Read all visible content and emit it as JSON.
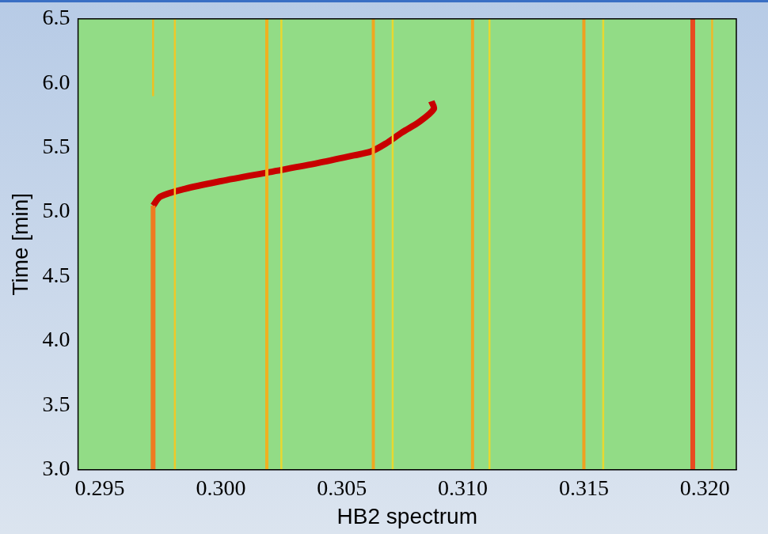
{
  "chart_data": {
    "type": "line",
    "x_label": "HB2 spectrum",
    "y_label": "Time [min]",
    "color": "#92dc86",
    "grid": false,
    "xlim": [
      0.2941,
      0.3213
    ],
    "ylim": [
      3.0,
      6.5
    ],
    "xticks": [
      {
        "value": 0.295,
        "label": "0.295"
      },
      {
        "value": 0.3,
        "label": "0.300"
      },
      {
        "value": 0.305,
        "label": "0.305"
      },
      {
        "value": 0.31,
        "label": "0.310"
      },
      {
        "value": 0.315,
        "label": "0.315"
      },
      {
        "value": 0.32,
        "label": "0.320"
      }
    ],
    "yticks": [
      {
        "value": 3,
        "label": "3.0"
      },
      {
        "value": 3.5,
        "label": "3.5"
      },
      {
        "value": 4,
        "label": "4.0"
      },
      {
        "value": 4.5,
        "label": "4.5"
      },
      {
        "value": 5,
        "label": "5.0"
      },
      {
        "value": 5.5,
        "label": "5.5"
      },
      {
        "value": 6,
        "label": "6.0"
      },
      {
        "value": 6.5,
        "label": "6.5"
      }
    ],
    "series": [
      {
        "color": "#f07a20",
        "line_style": "thick",
        "x": [
          0.2972,
          0.2972
        ],
        "values": [
          3.0,
          5.05
        ]
      },
      {
        "color": "#f0c020",
        "line_style": "thin",
        "x": [
          0.2972,
          0.2972
        ],
        "values": [
          5.9,
          6.5
        ]
      },
      {
        "color": "#f0c828",
        "line_style": "thin",
        "x": [
          0.2981,
          0.2981
        ],
        "values": [
          3.0,
          6.5
        ]
      },
      {
        "color": "#f0b020",
        "line_style": "medium",
        "x": [
          0.3019,
          0.3019
        ],
        "values": [
          3.0,
          6.5
        ]
      },
      {
        "color": "#e8d830",
        "line_style": "thin",
        "x": [
          0.3025,
          0.3025
        ],
        "values": [
          3.0,
          6.5
        ]
      },
      {
        "color": "#f0a820",
        "line_style": "medium",
        "x": [
          0.3063,
          0.3063
        ],
        "values": [
          3.0,
          6.5
        ]
      },
      {
        "color": "#e8d830",
        "line_style": "thin",
        "x": [
          0.3071,
          0.3071
        ],
        "values": [
          3.0,
          6.5
        ]
      },
      {
        "color": "#f0a820",
        "line_style": "medium",
        "x": [
          0.3104,
          0.3104
        ],
        "values": [
          3.0,
          6.5
        ]
      },
      {
        "color": "#e8d830",
        "line_style": "thin",
        "x": [
          0.3111,
          0.3111
        ],
        "values": [
          3.0,
          6.5
        ]
      },
      {
        "color": "#f0a020",
        "line_style": "medium",
        "x": [
          0.315,
          0.315
        ],
        "values": [
          3.0,
          6.5
        ]
      },
      {
        "color": "#e8d830",
        "line_style": "thin",
        "x": [
          0.3158,
          0.3158
        ],
        "values": [
          3.0,
          6.5
        ]
      },
      {
        "color": "#e84a20",
        "line_style": "thick",
        "x": [
          0.3195,
          0.3195
        ],
        "values": [
          3.0,
          6.5
        ]
      },
      {
        "color": "#f0b828",
        "line_style": "thin",
        "x": [
          0.3203,
          0.3203
        ],
        "values": [
          3.0,
          6.5
        ]
      },
      {
        "color": "#c80000",
        "line_style": "heavy",
        "x": [
          0.2972,
          0.2975,
          0.2985,
          0.3,
          0.302,
          0.304,
          0.3055,
          0.3062,
          0.3068,
          0.3075,
          0.3082,
          0.3088,
          0.3087
        ],
        "values": [
          5.05,
          5.12,
          5.18,
          5.24,
          5.31,
          5.38,
          5.44,
          5.47,
          5.53,
          5.62,
          5.7,
          5.8,
          5.86
        ]
      }
    ]
  }
}
